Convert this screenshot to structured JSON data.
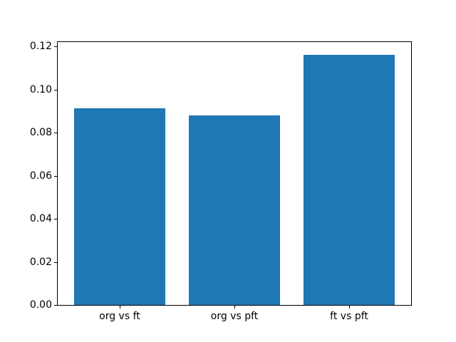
{
  "figure": {
    "background": "#ffffff"
  },
  "chart_data": {
    "type": "bar",
    "categories": [
      "org vs ft",
      "org vs pft",
      "ft vs pft"
    ],
    "values": [
      0.0914,
      0.088,
      0.1162
    ],
    "title": "",
    "xlabel": "",
    "ylabel": "",
    "bar_color": "#1f77b4",
    "ylim": [
      0,
      0.122
    ],
    "xlim": [
      -0.54,
      2.54
    ],
    "bar_width": 0.8,
    "yticks": [
      0.0,
      0.02,
      0.04,
      0.06,
      0.08,
      0.1,
      0.12
    ],
    "ytick_labels": [
      "0.00",
      "0.02",
      "0.04",
      "0.06",
      "0.08",
      "0.10",
      "0.12"
    ],
    "grid": false,
    "legend": "none"
  }
}
